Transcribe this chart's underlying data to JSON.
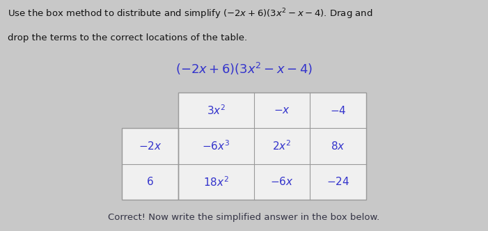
{
  "background_color": "#c8c8c8",
  "instruction_line1": "Use the box method to distribute and simplify $(-2x+6)(3x^2-x-4)$. Drag and",
  "instruction_line2": "drop the terms to the correct locations of the table.",
  "expression": "$(-2x+6)(3x^2-x-4)$",
  "header_row": [
    "$3x^2$",
    "$-x$",
    "$-4$"
  ],
  "row1_label": "$-2x$",
  "row2_label": "$6$",
  "row1_cells": [
    "$-6x^3$",
    "$2x^2$",
    "$8x$"
  ],
  "row2_cells": [
    "$18x^2$",
    "$-6x$",
    "$-24$"
  ],
  "footer_text": "Correct! Now write the simplified answer in the box below.",
  "table_bg": "#f0f0f0",
  "border_color": "#999999",
  "header_color": "#3333cc",
  "label_color": "#3333cc",
  "cell_text_color": "#3333cc",
  "instruction_color": "#111111",
  "expression_color": "#3333cc",
  "footer_color": "#333344"
}
